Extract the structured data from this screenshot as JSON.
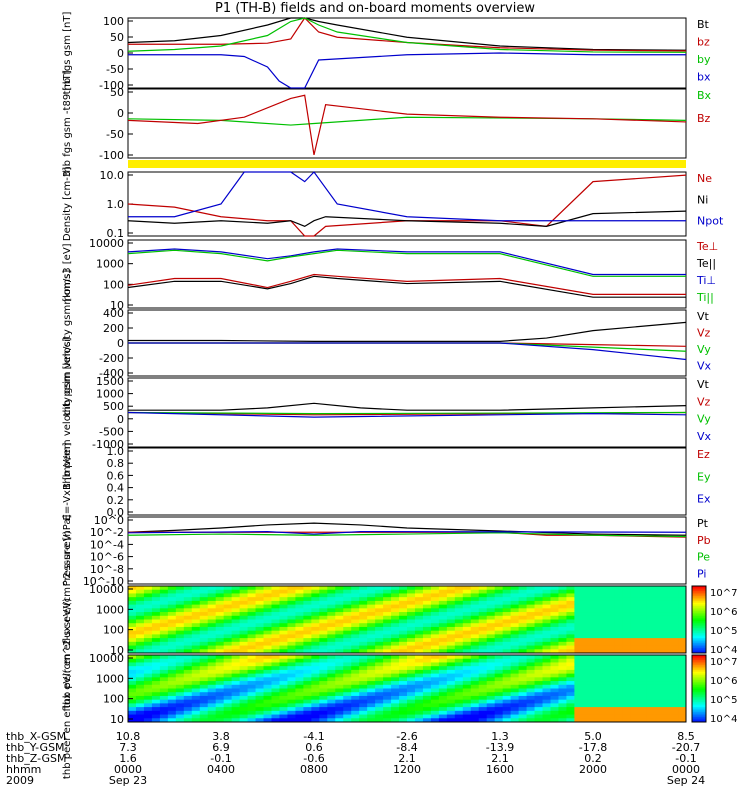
{
  "title": "P1 (TH-B) fields and on-board moments overview",
  "colorbar_ticks": [
    "10^7",
    "10^6",
    "10^5",
    "10^4"
  ],
  "footer": {
    "row_labels": [
      "thb_X-GSM",
      "thb_Y-GSM",
      "thb_Z-GSM",
      "hhmm",
      "2009"
    ],
    "columns": [
      {
        "x": "10.8",
        "y": "7.3",
        "z": "1.6",
        "hhmm": "0000",
        "date": "Sep 23"
      },
      {
        "x": "3.8",
        "y": "6.9",
        "z": "-0.1",
        "hhmm": "0400",
        "date": ""
      },
      {
        "x": "-4.1",
        "y": "0.6",
        "z": "-0.6",
        "hhmm": "0800",
        "date": ""
      },
      {
        "x": "-2.6",
        "y": "-8.4",
        "z": "2.1",
        "hhmm": "1200",
        "date": ""
      },
      {
        "x": "1.3",
        "y": "-13.9",
        "z": "2.1",
        "hhmm": "1600",
        "date": ""
      },
      {
        "x": "5.0",
        "y": "-17.8",
        "z": "0.2",
        "hhmm": "2000",
        "date": ""
      },
      {
        "x": "8.5",
        "y": "-20.7",
        "z": "-0.1",
        "hhmm": "0000",
        "date": "Sep 24"
      }
    ]
  },
  "chart_data": [
    {
      "type": "line",
      "ylabel": "thb fgs gsm [nT]",
      "ylim": [
        -100,
        100
      ],
      "yticks": [
        "100",
        "50",
        "0",
        "-50",
        "-100"
      ],
      "series": [
        {
          "name": "Bt",
          "color": "#000000",
          "x": [
            0,
            2,
            4,
            6,
            7,
            7.6,
            8.2,
            9,
            12,
            16,
            20,
            24
          ],
          "y": [
            30,
            35,
            50,
            80,
            100,
            100,
            90,
            80,
            45,
            20,
            10,
            8
          ]
        },
        {
          "name": "bz",
          "color": "#c00000",
          "x": [
            0,
            2,
            4,
            6,
            7,
            7.6,
            8.2,
            9,
            12,
            16,
            20,
            24
          ],
          "y": [
            25,
            25,
            25,
            28,
            40,
            100,
            60,
            45,
            30,
            15,
            8,
            6
          ]
        },
        {
          "name": "by",
          "color": "#00c000",
          "x": [
            0,
            2,
            4,
            6,
            7,
            7.6,
            8.2,
            9,
            12,
            16,
            20,
            24
          ],
          "y": [
            5,
            10,
            20,
            50,
            90,
            100,
            80,
            60,
            30,
            10,
            3,
            2
          ]
        },
        {
          "name": "bx",
          "color": "#0000cc",
          "x": [
            0,
            2,
            4,
            5,
            6,
            6.5,
            7,
            7.6,
            8.2,
            12,
            16,
            20,
            24
          ],
          "y": [
            -5,
            -5,
            -5,
            -10,
            -40,
            -80,
            -100,
            -100,
            -20,
            -5,
            0,
            -5,
            -5
          ]
        }
      ]
    },
    {
      "type": "line",
      "ylabel": "thb fgs gsm -t89 [nT]",
      "ylim": [
        -130,
        90
      ],
      "yticks": [
        "50",
        "0",
        "-50",
        "-100"
      ],
      "series": [
        {
          "name": "Bx",
          "color": "#00c000",
          "x": [
            0,
            4,
            7,
            8,
            12,
            20,
            24
          ],
          "y": [
            -5,
            -10,
            -25,
            -20,
            0,
            -5,
            -10
          ]
        },
        {
          "name": "Bz",
          "color": "#c00000",
          "x": [
            0,
            3,
            5,
            7,
            7.6,
            8,
            8.5,
            12,
            16,
            20,
            24
          ],
          "y": [
            -10,
            -20,
            0,
            60,
            70,
            -120,
            40,
            10,
            0,
            -5,
            -15
          ]
        }
      ]
    },
    {
      "type": "line",
      "ylabel": "Density [cm-3]",
      "ylim": [
        0.1,
        10.0
      ],
      "yticks": [
        "10.0",
        "1.0",
        "0.1"
      ],
      "series": [
        {
          "name": "Ne",
          "color": "#c00000",
          "x": [
            0,
            2,
            4,
            6,
            7,
            7.6,
            8,
            8.5,
            12,
            16,
            18,
            20,
            24
          ],
          "y": [
            1,
            0.8,
            0.4,
            0.3,
            0.3,
            0.1,
            0.1,
            0.2,
            0.3,
            0.3,
            0.2,
            5,
            8
          ]
        },
        {
          "name": "Ni",
          "color": "#000000",
          "x": [
            0,
            2,
            4,
            6,
            7,
            7.6,
            8,
            8.5,
            12,
            16,
            18,
            20,
            24
          ],
          "y": [
            0.3,
            0.25,
            0.3,
            0.25,
            0.3,
            0.2,
            0.3,
            0.4,
            0.3,
            0.25,
            0.2,
            0.5,
            0.6
          ]
        },
        {
          "name": "Npot",
          "color": "#0000cc",
          "x": [
            0,
            2,
            4,
            5,
            6,
            7,
            7.6,
            8,
            9,
            12,
            16,
            20,
            24
          ],
          "y": [
            0.4,
            0.4,
            1,
            10,
            10,
            10,
            5,
            10,
            1,
            0.4,
            0.3,
            0.3,
            0.3
          ]
        }
      ]
    },
    {
      "type": "line",
      "ylabel": "moms3 [eV]",
      "ylim": [
        10,
        10000
      ],
      "yticks": [
        "10000",
        "1000",
        "100",
        "10"
      ],
      "series": [
        {
          "name": "Te⊥",
          "color": "#c00000",
          "x": [
            0,
            2,
            4,
            6,
            7,
            8,
            9,
            12,
            16,
            20,
            24
          ],
          "y": [
            100,
            200,
            200,
            80,
            150,
            300,
            250,
            150,
            200,
            40,
            40
          ]
        },
        {
          "name": "Te||",
          "color": "#000000",
          "x": [
            0,
            2,
            4,
            6,
            7,
            8,
            9,
            12,
            16,
            20,
            24
          ],
          "y": [
            80,
            150,
            150,
            70,
            120,
            250,
            200,
            120,
            150,
            30,
            30
          ]
        },
        {
          "name": "Ti⊥",
          "color": "#0000cc",
          "x": [
            0,
            2,
            4,
            6,
            7,
            8,
            9,
            12,
            16,
            20,
            24
          ],
          "y": [
            3000,
            4000,
            3000,
            1500,
            2000,
            3000,
            4000,
            3000,
            3000,
            300,
            300
          ]
        },
        {
          "name": "Ti||",
          "color": "#00c000",
          "x": [
            0,
            2,
            4,
            6,
            7,
            8,
            9,
            12,
            16,
            20,
            24
          ],
          "y": [
            2500,
            3500,
            2500,
            1200,
            1800,
            2500,
            3500,
            2500,
            2500,
            250,
            250
          ]
        }
      ]
    },
    {
      "type": "line",
      "ylabel": "thb peim velocity gsm [km/s]",
      "ylim": [
        -400,
        400
      ],
      "yticks": [
        "400",
        "200",
        "0",
        "-200",
        "-400"
      ],
      "series": [
        {
          "name": "Vt",
          "color": "#000000",
          "x": [
            0,
            4,
            8,
            12,
            16,
            18,
            20,
            24
          ],
          "y": [
            30,
            30,
            20,
            20,
            20,
            60,
            150,
            250
          ]
        },
        {
          "name": "Vz",
          "color": "#c00000",
          "x": [
            0,
            8,
            16,
            20,
            24
          ],
          "y": [
            0,
            0,
            0,
            -20,
            -40
          ]
        },
        {
          "name": "Vy",
          "color": "#00c000",
          "x": [
            0,
            8,
            16,
            20,
            24
          ],
          "y": [
            0,
            0,
            0,
            -50,
            -100
          ]
        },
        {
          "name": "Vx",
          "color": "#0000cc",
          "x": [
            0,
            8,
            16,
            20,
            24
          ],
          "y": [
            0,
            0,
            0,
            -80,
            -200
          ]
        }
      ]
    },
    {
      "type": "line",
      "ylabel": "thb peem velocity gsm [km/s]",
      "ylim": [
        -1500,
        1500
      ],
      "yticks": [
        "1500",
        "1000",
        "500",
        "0",
        "-500",
        "-1000"
      ],
      "series": [
        {
          "name": "Vt",
          "color": "#000000",
          "x": [
            0,
            4,
            6,
            8,
            10,
            12,
            16,
            20,
            24
          ],
          "y": [
            100,
            100,
            200,
            400,
            200,
            100,
            100,
            200,
            300
          ]
        },
        {
          "name": "Vz",
          "color": "#c00000",
          "x": [
            0,
            8,
            24
          ],
          "y": [
            0,
            -100,
            0
          ]
        },
        {
          "name": "Vy",
          "color": "#00c000",
          "x": [
            0,
            8,
            24
          ],
          "y": [
            0,
            -50,
            0
          ]
        },
        {
          "name": "Vx",
          "color": "#0000cc",
          "x": [
            0,
            8,
            20,
            24
          ],
          "y": [
            0,
            -200,
            -50,
            -100
          ]
        }
      ]
    },
    {
      "type": "line",
      "ylabel": "E=-VxB [mV/m]",
      "ylim": [
        0,
        1.0
      ],
      "yticks": [
        "1.0",
        "0.8",
        "0.6",
        "0.4",
        "0.2",
        "0.0"
      ],
      "series": [
        {
          "name": "Ez",
          "color": "#c00000",
          "x": [],
          "y": []
        },
        {
          "name": "Ey",
          "color": "#00c000",
          "x": [],
          "y": []
        },
        {
          "name": "Ex",
          "color": "#0000cc",
          "x": [],
          "y": []
        }
      ]
    },
    {
      "type": "line",
      "ylabel": "Pressure [nPa]",
      "ylim": [
        -10,
        1
      ],
      "yscale": "log",
      "yticks": [
        "10^0",
        "10^-2",
        "10^-4",
        "10^-6",
        "10^-8",
        "10^-10"
      ],
      "series": [
        {
          "name": "Pt",
          "color": "#000000",
          "x": [
            0,
            2,
            4,
            6,
            8,
            10,
            12,
            16,
            20,
            24
          ],
          "y": [
            -1.5,
            -1.2,
            -0.8,
            -0.3,
            0,
            -0.3,
            -0.8,
            -1.3,
            -1.8,
            -2
          ]
        },
        {
          "name": "Pb",
          "color": "#c00000",
          "x": [
            0,
            8,
            16,
            18,
            20,
            24
          ],
          "y": [
            -1.5,
            -1.5,
            -1.5,
            -2,
            -2,
            -2.3
          ]
        },
        {
          "name": "Pe",
          "color": "#00c000",
          "x": [
            0,
            4,
            8,
            12,
            16,
            20,
            24
          ],
          "y": [
            -2,
            -1.8,
            -2,
            -1.8,
            -1.6,
            -2,
            -2.2
          ]
        },
        {
          "name": "Pi",
          "color": "#0000cc",
          "x": [
            0,
            6,
            8,
            10,
            24
          ],
          "y": [
            -1.6,
            -1.4,
            -1.8,
            -1.4,
            -1.5
          ]
        }
      ]
    },
    {
      "type": "heatmap",
      "ylabel": "thb peir en eflux eV/(cm^2-s-sr-eV)",
      "ylim": [
        10,
        10000
      ],
      "yticks": [
        "10000",
        "1000",
        "100",
        "10"
      ]
    },
    {
      "type": "heatmap",
      "ylabel": "thb peer en eflux eV/(cm^2-s-sr-eV)",
      "ylim": [
        10,
        10000
      ],
      "yticks": [
        "10000",
        "1000",
        "100",
        "10"
      ]
    }
  ]
}
